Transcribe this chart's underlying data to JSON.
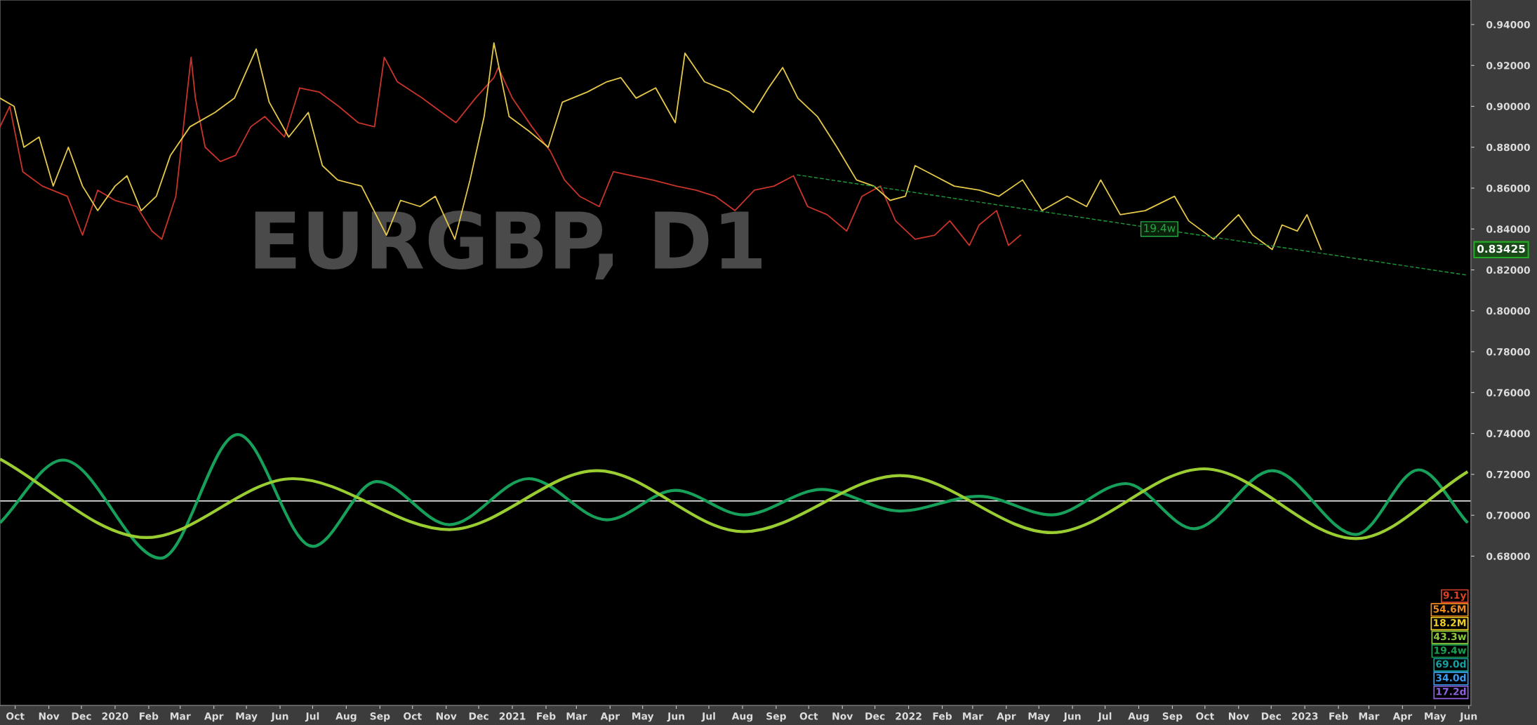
{
  "chart_data": {
    "type": "line",
    "title": "EURGBP, D1",
    "xlim": [
      "2019-09-17",
      "2023-06-03"
    ],
    "ylim": [
      0.607,
      0.952
    ],
    "xticks": [
      {
        "value": "2019-10-01",
        "label": "Oct"
      },
      {
        "value": "2019-11-01",
        "label": "Nov"
      },
      {
        "value": "2019-12-01",
        "label": "Dec"
      },
      {
        "value": "2020-01-01",
        "label": "2020"
      },
      {
        "value": "2020-02-01",
        "label": "Feb"
      },
      {
        "value": "2020-03-01",
        "label": "Mar"
      },
      {
        "value": "2020-04-01",
        "label": "Apr"
      },
      {
        "value": "2020-05-01",
        "label": "May"
      },
      {
        "value": "2020-06-01",
        "label": "Jun"
      },
      {
        "value": "2020-07-01",
        "label": "Jul"
      },
      {
        "value": "2020-08-01",
        "label": "Aug"
      },
      {
        "value": "2020-09-01",
        "label": "Sep"
      },
      {
        "value": "2020-10-01",
        "label": "Oct"
      },
      {
        "value": "2020-11-01",
        "label": "Nov"
      },
      {
        "value": "2020-12-01",
        "label": "Dec"
      },
      {
        "value": "2021-01-01",
        "label": "2021"
      },
      {
        "value": "2021-02-01",
        "label": "Feb"
      },
      {
        "value": "2021-03-01",
        "label": "Mar"
      },
      {
        "value": "2021-04-01",
        "label": "Apr"
      },
      {
        "value": "2021-05-01",
        "label": "May"
      },
      {
        "value": "2021-06-01",
        "label": "Jun"
      },
      {
        "value": "2021-07-01",
        "label": "Jul"
      },
      {
        "value": "2021-08-01",
        "label": "Aug"
      },
      {
        "value": "2021-09-01",
        "label": "Sep"
      },
      {
        "value": "2021-10-01",
        "label": "Oct"
      },
      {
        "value": "2021-11-01",
        "label": "Nov"
      },
      {
        "value": "2021-12-01",
        "label": "Dec"
      },
      {
        "value": "2022-01-01",
        "label": "2022"
      },
      {
        "value": "2022-02-01",
        "label": "Feb"
      },
      {
        "value": "2022-03-01",
        "label": "Mar"
      },
      {
        "value": "2022-04-01",
        "label": "Apr"
      },
      {
        "value": "2022-05-01",
        "label": "May"
      },
      {
        "value": "2022-06-01",
        "label": "Jun"
      },
      {
        "value": "2022-07-01",
        "label": "Jul"
      },
      {
        "value": "2022-08-01",
        "label": "Aug"
      },
      {
        "value": "2022-09-01",
        "label": "Sep"
      },
      {
        "value": "2022-10-01",
        "label": "Oct"
      },
      {
        "value": "2022-11-01",
        "label": "Nov"
      },
      {
        "value": "2022-12-01",
        "label": "Dec"
      },
      {
        "value": "2023-01-01",
        "label": "2023"
      },
      {
        "value": "2023-02-01",
        "label": "Feb"
      },
      {
        "value": "2023-03-01",
        "label": "Mar"
      },
      {
        "value": "2023-04-01",
        "label": "Apr"
      },
      {
        "value": "2023-05-01",
        "label": "May"
      },
      {
        "value": "2023-06-01",
        "label": "Jun"
      }
    ],
    "yticks": [
      {
        "value": 0.68,
        "label": "0.68000"
      },
      {
        "value": 0.7,
        "label": "0.70000"
      },
      {
        "value": 0.72,
        "label": "0.72000"
      },
      {
        "value": 0.74,
        "label": "0.74000"
      },
      {
        "value": 0.76,
        "label": "0.76000"
      },
      {
        "value": 0.78,
        "label": "0.78000"
      },
      {
        "value": 0.8,
        "label": "0.80000"
      },
      {
        "value": 0.82,
        "label": "0.82000"
      },
      {
        "value": 0.84,
        "label": "0.84000"
      },
      {
        "value": 0.86,
        "label": "0.86000"
      },
      {
        "value": 0.88,
        "label": "0.88000"
      },
      {
        "value": 0.9,
        "label": "0.90000"
      },
      {
        "value": 0.92,
        "label": "0.92000"
      },
      {
        "value": 0.94,
        "label": "0.94000"
      }
    ],
    "series": [
      {
        "color": "#c8342a",
        "x": [
          "2019-09-17",
          "2019-09-26",
          "2019-10-08",
          "2019-10-26",
          "2019-11-18",
          "2019-12-02",
          "2019-12-16",
          "2020-01-01",
          "2020-01-21",
          "2020-02-04",
          "2020-02-13",
          "2020-02-26",
          "2020-03-11",
          "2020-03-15",
          "2020-03-24",
          "2020-04-07",
          "2020-04-21",
          "2020-05-05",
          "2020-05-18",
          "2020-06-05",
          "2020-06-19",
          "2020-07-07",
          "2020-07-25",
          "2020-08-12",
          "2020-08-27",
          "2020-09-05",
          "2020-09-17",
          "2020-10-10",
          "2020-10-28",
          "2020-11-10",
          "2020-11-28",
          "2020-12-15",
          "2020-12-19",
          "2021-01-01",
          "2021-01-19",
          "2021-02-05",
          "2021-02-18",
          "2021-03-04",
          "2021-03-22",
          "2021-04-04",
          "2021-04-22",
          "2021-05-10",
          "2021-06-01",
          "2021-06-19",
          "2021-07-07",
          "2021-07-25",
          "2021-08-12",
          "2021-08-30",
          "2021-09-17",
          "2021-09-30",
          "2021-10-18",
          "2021-11-05",
          "2021-11-19",
          "2021-12-06",
          "2021-12-20",
          "2022-01-07",
          "2022-01-25",
          "2022-02-08",
          "2022-02-26",
          "2022-03-07",
          "2022-03-23",
          "2022-04-03",
          "2022-04-14"
        ],
        "values": [
          0.89,
          0.9,
          0.868,
          0.861,
          0.856,
          0.837,
          0.859,
          0.854,
          0.851,
          0.839,
          0.835,
          0.856,
          0.924,
          0.904,
          0.88,
          0.873,
          0.876,
          0.89,
          0.895,
          0.885,
          0.909,
          0.907,
          0.9,
          0.892,
          0.89,
          0.924,
          0.912,
          0.904,
          0.897,
          0.892,
          0.904,
          0.914,
          0.919,
          0.904,
          0.89,
          0.878,
          0.864,
          0.856,
          0.851,
          0.868,
          0.866,
          0.864,
          0.861,
          0.859,
          0.856,
          0.849,
          0.859,
          0.861,
          0.866,
          0.851,
          0.847,
          0.839,
          0.856,
          0.861,
          0.844,
          0.835,
          0.837,
          0.844,
          0.832,
          0.842,
          0.849,
          0.832,
          0.837
        ]
      },
      {
        "color": "#e6c84a",
        "x": [
          "2019-09-17",
          "2019-09-30",
          "2019-10-09",
          "2019-10-23",
          "2019-11-05",
          "2019-11-19",
          "2019-12-02",
          "2019-12-16",
          "2020-01-01",
          "2020-01-12",
          "2020-01-25",
          "2020-02-08",
          "2020-02-21",
          "2020-03-10",
          "2020-04-02",
          "2020-04-20",
          "2020-05-10",
          "2020-05-22",
          "2020-06-09",
          "2020-06-27",
          "2020-07-10",
          "2020-07-24",
          "2020-08-15",
          "2020-09-07",
          "2020-09-20",
          "2020-10-08",
          "2020-10-22",
          "2020-11-09",
          "2020-11-23",
          "2020-12-06",
          "2020-12-15",
          "2020-12-29",
          "2021-01-16",
          "2021-02-03",
          "2021-02-16",
          "2021-03-11",
          "2021-03-29",
          "2021-04-11",
          "2021-04-25",
          "2021-05-13",
          "2021-05-31",
          "2021-06-09",
          "2021-06-27",
          "2021-07-20",
          "2021-08-11",
          "2021-08-25",
          "2021-09-07",
          "2021-09-21",
          "2021-10-09",
          "2021-10-27",
          "2021-11-14",
          "2021-11-30",
          "2021-12-15",
          "2021-12-29",
          "2022-01-07",
          "2022-01-25",
          "2022-02-12",
          "2022-03-07",
          "2022-03-25",
          "2022-04-16",
          "2022-05-04",
          "2022-05-27",
          "2022-06-14",
          "2022-06-27",
          "2022-07-15",
          "2022-08-07",
          "2022-09-03",
          "2022-09-16",
          "2022-10-09",
          "2022-11-01",
          "2022-11-14",
          "2022-12-02",
          "2022-12-11",
          "2022-12-25",
          "2023-01-03",
          "2023-01-16"
        ],
        "values": [
          0.904,
          0.9,
          0.88,
          0.885,
          0.861,
          0.88,
          0.861,
          0.849,
          0.861,
          0.866,
          0.849,
          0.856,
          0.876,
          0.89,
          0.897,
          0.904,
          0.928,
          0.902,
          0.885,
          0.897,
          0.871,
          0.864,
          0.861,
          0.837,
          0.854,
          0.851,
          0.856,
          0.835,
          0.864,
          0.895,
          0.931,
          0.895,
          0.888,
          0.88,
          0.902,
          0.907,
          0.912,
          0.914,
          0.904,
          0.909,
          0.892,
          0.926,
          0.912,
          0.907,
          0.897,
          0.909,
          0.919,
          0.904,
          0.895,
          0.88,
          0.864,
          0.861,
          0.854,
          0.856,
          0.871,
          0.866,
          0.861,
          0.859,
          0.856,
          0.864,
          0.849,
          0.856,
          0.851,
          0.864,
          0.847,
          0.849,
          0.856,
          0.844,
          0.835,
          0.847,
          0.837,
          0.83,
          0.842,
          0.839,
          0.847,
          0.83
        ]
      },
      {
        "color": "#1f9a3a",
        "line_style": "dashed",
        "x": [
          "2021-09-20",
          "2023-05-31"
        ],
        "values": [
          0.8665,
          0.8174
        ]
      },
      {
        "color": "#17a05a",
        "x": [
          "2019-09-17",
          "2019-11-14",
          "2020-02-12",
          "2020-04-23",
          "2020-07-01",
          "2020-08-29",
          "2020-11-04",
          "2021-01-16",
          "2021-03-29",
          "2021-05-31",
          "2021-08-02",
          "2021-10-13",
          "2021-12-24",
          "2022-03-07",
          "2022-05-13",
          "2022-07-20",
          "2022-09-21",
          "2022-12-02",
          "2023-02-17",
          "2023-04-16",
          "2023-05-31"
        ],
        "values": [
          0.6963,
          0.727,
          0.679,
          0.7395,
          0.6848,
          0.7165,
          0.6954,
          0.7179,
          0.6978,
          0.7122,
          0.7002,
          0.7126,
          0.7021,
          0.7093,
          0.7002,
          0.7155,
          0.6934,
          0.7218,
          0.6906,
          0.7222,
          0.6963
        ]
      },
      {
        "color": "#9acd32",
        "x": [
          "2019-09-17",
          "2020-01-30",
          "2020-06-13",
          "2020-11-04",
          "2021-03-20",
          "2021-08-02",
          "2021-12-24",
          "2022-05-13",
          "2022-09-30",
          "2023-02-17",
          "2023-05-31"
        ],
        "values": [
          0.7275,
          0.6891,
          0.7179,
          0.693,
          0.7218,
          0.692,
          0.7194,
          0.6915,
          0.7227,
          0.6886,
          0.7213
        ]
      }
    ],
    "ref_lines": [
      {
        "axis": "y",
        "value": 0.707,
        "color": "#ffffff"
      }
    ],
    "annotations": [
      {
        "text": "19.4w",
        "x": "2022-08-20",
        "y": 0.84
      },
      "0.83425",
      "9.1y",
      "54.6M",
      "18.2M",
      "43.3w",
      "19.4w",
      "69.0d",
      "34.0d",
      "17.2d"
    ],
    "grid": false,
    "legend": false
  }
}
